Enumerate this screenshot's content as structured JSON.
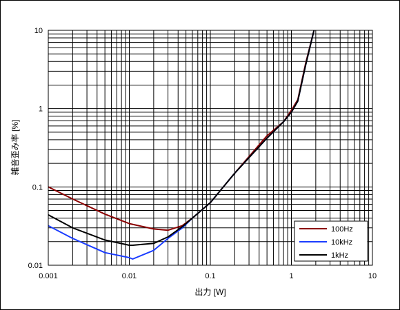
{
  "chart_data": {
    "type": "line",
    "title": "",
    "xlabel": "出力 [W]",
    "ylabel": "雑音歪み率 [%]",
    "xscale": "log",
    "yscale": "log",
    "xlim": [
      0.001,
      10
    ],
    "ylim": [
      0.01,
      10
    ],
    "grid": true,
    "legend_position": "bottom-right",
    "x_tick_labels": [
      "0.001",
      "0.01",
      "0.1",
      "1",
      "10"
    ],
    "y_tick_labels": [
      "0.01",
      "0.1",
      "1",
      "10"
    ],
    "series": [
      {
        "name": "100Hz",
        "color": "#8b0000",
        "x": [
          0.001,
          0.002,
          0.005,
          0.01,
          0.02,
          0.03,
          0.045,
          0.06,
          0.1,
          0.2,
          0.5,
          0.8,
          1.0,
          1.2,
          1.5,
          1.9
        ],
        "y": [
          0.1,
          0.07,
          0.045,
          0.034,
          0.029,
          0.028,
          0.032,
          0.04,
          0.063,
          0.15,
          0.45,
          0.68,
          0.95,
          1.3,
          3.8,
          10
        ]
      },
      {
        "name": "10kHz",
        "color": "#1a3cff",
        "x": [
          0.001,
          0.002,
          0.005,
          0.01,
          0.011,
          0.02,
          0.03,
          0.045,
          0.06,
          0.1,
          0.2,
          0.5,
          0.8,
          1.0,
          1.2,
          1.5,
          1.9
        ],
        "y": [
          0.032,
          0.022,
          0.0145,
          0.0125,
          0.012,
          0.0155,
          0.022,
          0.03,
          0.04,
          0.063,
          0.15,
          0.42,
          0.68,
          0.9,
          1.25,
          3.6,
          10
        ]
      },
      {
        "name": "1kHz",
        "color": "#000000",
        "x": [
          0.001,
          0.002,
          0.005,
          0.01,
          0.011,
          0.02,
          0.03,
          0.045,
          0.06,
          0.1,
          0.2,
          0.5,
          0.8,
          1.0,
          1.2,
          1.5,
          1.9
        ],
        "y": [
          0.044,
          0.03,
          0.021,
          0.018,
          0.018,
          0.019,
          0.023,
          0.031,
          0.04,
          0.063,
          0.15,
          0.42,
          0.68,
          0.9,
          1.25,
          3.6,
          10
        ]
      }
    ]
  }
}
